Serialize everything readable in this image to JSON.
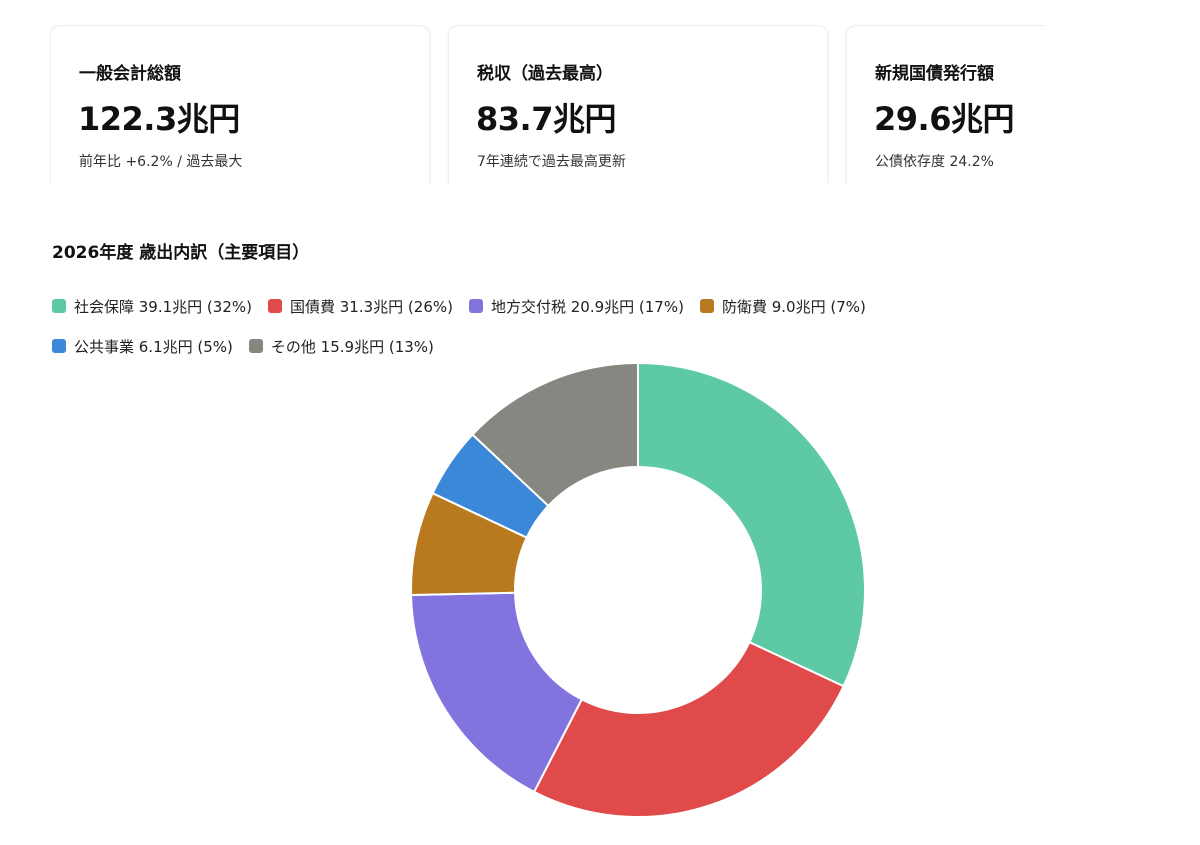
{
  "cards": [
    {
      "title": "一般会計総額",
      "value": "122.3兆円",
      "sub": "前年比 +6.2% / 過去最大"
    },
    {
      "title": "税収（過去最高）",
      "value": "83.7兆円",
      "sub": "7年連続で過去最高更新"
    },
    {
      "title": "新規国債発行額",
      "value": "29.6兆円",
      "sub": "公債依存度 24.2%"
    }
  ],
  "chart_data": {
    "type": "pie",
    "variant": "donut",
    "title": "2026年度 歳出内訳（主要項目）",
    "legend_position": "top-left",
    "categories": [
      "社会保障",
      "国債費",
      "地方交付税",
      "防衛費",
      "公共事業",
      "その他"
    ],
    "values": [
      39.1,
      31.3,
      20.9,
      9.0,
      6.1,
      15.9
    ],
    "unit": "兆円",
    "legend_labels": [
      "社会保障 39.1兆円 (32%)",
      "国債費 31.3兆円 (26%)",
      "地方交付税 20.9兆円 (17%)",
      "防衛費 9.0兆円 (7%)",
      "公共事業 6.1兆円 (5%)",
      "その他 15.9兆円 (13%)"
    ],
    "colors": [
      "#5ec9a5",
      "#e04a4a",
      "#8174de",
      "#b97a1f",
      "#3b87d8",
      "#878781"
    ]
  }
}
